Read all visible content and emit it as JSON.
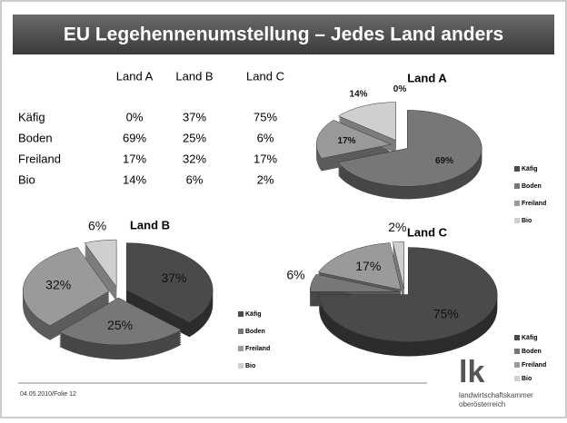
{
  "title": "EU Legehennenumstellung – Jedes Land anders",
  "table": {
    "columns": [
      "Land A",
      "Land B",
      "Land C"
    ],
    "rows": [
      {
        "label": "Käfig",
        "cells": [
          "0%",
          "37%",
          "75%"
        ]
      },
      {
        "label": "Boden",
        "cells": [
          "69%",
          "25%",
          "6%"
        ]
      },
      {
        "label": "Freiland",
        "cells": [
          "17%",
          "32%",
          "17%"
        ]
      },
      {
        "label": "Bio",
        "cells": [
          "14%",
          "6%",
          "2%"
        ]
      }
    ]
  },
  "chart_data": [
    {
      "type": "pie",
      "title": "Land A",
      "categories": [
        "Käfig",
        "Boden",
        "Freiland",
        "Bio"
      ],
      "values": [
        0,
        69,
        17,
        14
      ],
      "value_labels": [
        "0%",
        "69%",
        "17%",
        "14%"
      ],
      "colors": [
        "#4a4a4a",
        "#777777",
        "#9a9a9a",
        "#cfcfcf"
      ],
      "legend": "right"
    },
    {
      "type": "pie",
      "title": "Land B",
      "categories": [
        "Käfig",
        "Boden",
        "Freiland",
        "Bio"
      ],
      "values": [
        37,
        25,
        32,
        6
      ],
      "value_labels": [
        "37%",
        "25%",
        "32%",
        "6%"
      ],
      "colors": [
        "#4a4a4a",
        "#777777",
        "#9a9a9a",
        "#cfcfcf"
      ],
      "legend": "right"
    },
    {
      "type": "pie",
      "title": "Land C",
      "categories": [
        "Käfig",
        "Boden",
        "Freiland",
        "Bio"
      ],
      "values": [
        75,
        6,
        17,
        2
      ],
      "value_labels": [
        "75%",
        "6%",
        "17%",
        "2%"
      ],
      "colors": [
        "#4a4a4a",
        "#777777",
        "#9a9a9a",
        "#cfcfcf"
      ],
      "legend": "right"
    }
  ],
  "footer": "04.05.2010/Folie 12",
  "logo": {
    "mark": "lk",
    "line1": "landwirtschaftskammer",
    "line2": "oberösterreich"
  }
}
